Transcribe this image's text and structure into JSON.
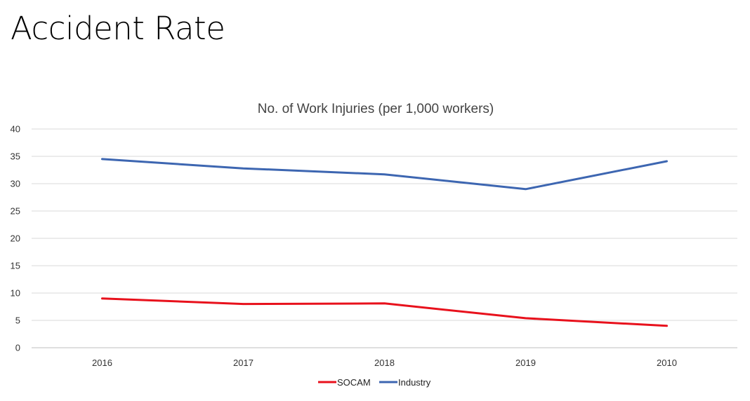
{
  "slide": {
    "title": "Accident Rate"
  },
  "chart_data": {
    "type": "line",
    "title": "No. of Work Injuries (per 1,000 workers)",
    "xlabel": "",
    "ylabel": "",
    "categories": [
      "2016",
      "2017",
      "2018",
      "2019",
      "2010"
    ],
    "ylim": [
      0,
      40
    ],
    "yticks": [
      0,
      5,
      10,
      15,
      20,
      25,
      30,
      35,
      40
    ],
    "grid": true,
    "legend_position": "bottom",
    "series": [
      {
        "name": "SOCAM",
        "color": "#e8111c",
        "values": [
          9.0,
          8.0,
          8.1,
          5.4,
          4.0
        ]
      },
      {
        "name": "Industry",
        "color": "#3d66b1",
        "values": [
          34.5,
          32.8,
          31.7,
          29.0,
          34.1
        ]
      }
    ]
  }
}
